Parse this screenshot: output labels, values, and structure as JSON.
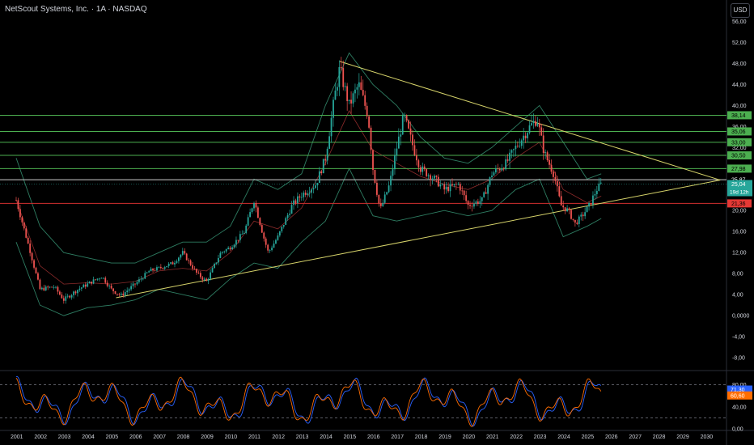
{
  "header": {
    "title": "NetScout Systems, Inc. · 1A · NASDAQ",
    "currency_button": "USD"
  },
  "colors": {
    "background": "#000000",
    "up": "#26a69a",
    "down": "#ef5350",
    "band": "#2e7d62",
    "band_mid": "#8b2a2a",
    "trendline": "#d6d36a",
    "support_line": "#d32f2f",
    "level_line": "#4caf50",
    "white_line": "#cfcfcf",
    "rsi_k": "#2962ff",
    "rsi_d": "#ff6d00"
  },
  "chart_data": {
    "type": "candlestick",
    "x_axis": {
      "tick_labels": [
        "2001",
        "2002",
        "2003",
        "2004",
        "2005",
        "2006",
        "2007",
        "2008",
        "2009",
        "2010",
        "2011",
        "2012",
        "2013",
        "2014",
        "2015",
        "2016",
        "2017",
        "2018",
        "2019",
        "2020",
        "2021",
        "2022",
        "2023",
        "2024",
        "2025",
        "2026",
        "2027",
        "2028",
        "2029",
        "2030"
      ]
    },
    "price_axis": {
      "ylim": [
        -10,
        57
      ],
      "tick_labels": [
        "56,00",
        "52,00",
        "48,00",
        "44,00",
        "40,00",
        "36,00",
        "32,00",
        "28,00",
        "24,00",
        "20,00",
        "16,00",
        "12,00",
        "8,00",
        "4,00",
        "0,0000",
        "-4,00",
        "-8,00"
      ],
      "tick_values": [
        56,
        52,
        48,
        44,
        40,
        36,
        32,
        28,
        24,
        20,
        16,
        12,
        8,
        4,
        0,
        -4,
        -8
      ]
    },
    "horizontal_levels": [
      {
        "value": 38.14,
        "label": "38,14",
        "kind": "resistance"
      },
      {
        "value": 35.06,
        "label": "35,06",
        "kind": "resistance"
      },
      {
        "value": 33.0,
        "label": "33,00",
        "kind": "resistance"
      },
      {
        "value": 30.5,
        "label": "30,50",
        "kind": "resistance"
      },
      {
        "value": 27.98,
        "label": "27,98",
        "kind": "resistance"
      },
      {
        "value": 25.87,
        "label": "25,87",
        "kind": "reference"
      },
      {
        "value": 21.36,
        "label": "21,36",
        "kind": "support"
      }
    ],
    "last_price": {
      "value": 25.04,
      "label": "25,04",
      "countdown": "19d 12h"
    },
    "trendlines": [
      {
        "from": [
          "2005.2",
          3.4
        ],
        "to": [
          "2030.6",
          25.8
        ]
      },
      {
        "from": [
          "2014.6",
          48.4
        ],
        "to": [
          "2030.6",
          25.8
        ]
      }
    ],
    "series": [
      {
        "name": "price",
        "points": [
          [
            2001.0,
            22
          ],
          [
            2001.6,
            12
          ],
          [
            2002.0,
            5
          ],
          [
            2002.6,
            5.5
          ],
          [
            2003.0,
            3
          ],
          [
            2003.6,
            5
          ],
          [
            2004.0,
            6
          ],
          [
            2004.6,
            7.5
          ],
          [
            2005.0,
            5
          ],
          [
            2005.4,
            3.8
          ],
          [
            2006.0,
            6
          ],
          [
            2006.6,
            8.5
          ],
          [
            2007.0,
            9
          ],
          [
            2007.6,
            10
          ],
          [
            2008.0,
            12
          ],
          [
            2008.6,
            8
          ],
          [
            2009.0,
            6.5
          ],
          [
            2009.6,
            12
          ],
          [
            2010.0,
            13
          ],
          [
            2010.6,
            16
          ],
          [
            2011.0,
            22
          ],
          [
            2011.4,
            15
          ],
          [
            2011.6,
            12
          ],
          [
            2012.0,
            15
          ],
          [
            2012.6,
            21
          ],
          [
            2013.0,
            23
          ],
          [
            2013.6,
            25
          ],
          [
            2014.0,
            30
          ],
          [
            2014.4,
            42
          ],
          [
            2014.6,
            47
          ],
          [
            2015.0,
            40
          ],
          [
            2015.4,
            44
          ],
          [
            2015.8,
            38
          ],
          [
            2016.0,
            28
          ],
          [
            2016.3,
            20
          ],
          [
            2016.7,
            25
          ],
          [
            2017.0,
            32
          ],
          [
            2017.3,
            38
          ],
          [
            2017.7,
            32
          ],
          [
            2018.0,
            28
          ],
          [
            2018.6,
            26
          ],
          [
            2019.0,
            24
          ],
          [
            2019.6,
            25
          ],
          [
            2020.0,
            21
          ],
          [
            2020.6,
            22
          ],
          [
            2021.0,
            27
          ],
          [
            2021.6,
            29
          ],
          [
            2022.0,
            32
          ],
          [
            2022.6,
            36
          ],
          [
            2022.9,
            37.5
          ],
          [
            2023.2,
            31
          ],
          [
            2023.6,
            27
          ],
          [
            2023.9,
            21
          ],
          [
            2024.2,
            20
          ],
          [
            2024.5,
            17.5
          ],
          [
            2024.8,
            19
          ],
          [
            2025.1,
            21
          ],
          [
            2025.4,
            24
          ],
          [
            2025.6,
            25.04
          ]
        ]
      },
      {
        "name": "band_upper",
        "points": [
          [
            2001.0,
            30
          ],
          [
            2002.0,
            17
          ],
          [
            2003.0,
            12
          ],
          [
            2004.0,
            11
          ],
          [
            2005.0,
            10
          ],
          [
            2006.0,
            10
          ],
          [
            2007.0,
            12
          ],
          [
            2008.0,
            14
          ],
          [
            2009.0,
            14
          ],
          [
            2010.0,
            17
          ],
          [
            2011.0,
            26
          ],
          [
            2012.0,
            24
          ],
          [
            2013.0,
            27
          ],
          [
            2014.0,
            40
          ],
          [
            2015.0,
            50
          ],
          [
            2016.0,
            44
          ],
          [
            2017.0,
            40
          ],
          [
            2018.0,
            34
          ],
          [
            2019.0,
            30
          ],
          [
            2020.0,
            29
          ],
          [
            2021.0,
            32
          ],
          [
            2022.0,
            36
          ],
          [
            2023.0,
            40
          ],
          [
            2024.0,
            33
          ],
          [
            2025.0,
            26
          ],
          [
            2025.6,
            27
          ]
        ]
      },
      {
        "name": "band_lower",
        "points": [
          [
            2001.0,
            14
          ],
          [
            2002.0,
            2
          ],
          [
            2003.0,
            0
          ],
          [
            2004.0,
            1.5
          ],
          [
            2005.0,
            2
          ],
          [
            2006.0,
            3
          ],
          [
            2007.0,
            5
          ],
          [
            2008.0,
            4
          ],
          [
            2009.0,
            3
          ],
          [
            2010.0,
            7
          ],
          [
            2011.0,
            10
          ],
          [
            2012.0,
            9
          ],
          [
            2013.0,
            14
          ],
          [
            2014.0,
            18
          ],
          [
            2015.0,
            28
          ],
          [
            2016.0,
            19
          ],
          [
            2017.0,
            18
          ],
          [
            2018.0,
            19
          ],
          [
            2019.0,
            20
          ],
          [
            2020.0,
            19
          ],
          [
            2021.0,
            20
          ],
          [
            2022.0,
            24
          ],
          [
            2023.0,
            26
          ],
          [
            2024.0,
            15
          ],
          [
            2025.0,
            17
          ],
          [
            2025.6,
            18.5
          ]
        ]
      }
    ],
    "oscillator": {
      "ylim": [
        0,
        100
      ],
      "tick_labels": [
        "80,00",
        "40,00",
        "0,00"
      ],
      "tick_values": [
        80,
        40,
        0
      ],
      "dashed_levels": [
        80,
        20
      ],
      "current": [
        {
          "name": "k",
          "value": 71.3,
          "label": "71,30"
        },
        {
          "name": "d",
          "value": 60.6,
          "label": "60,60"
        }
      ]
    }
  }
}
